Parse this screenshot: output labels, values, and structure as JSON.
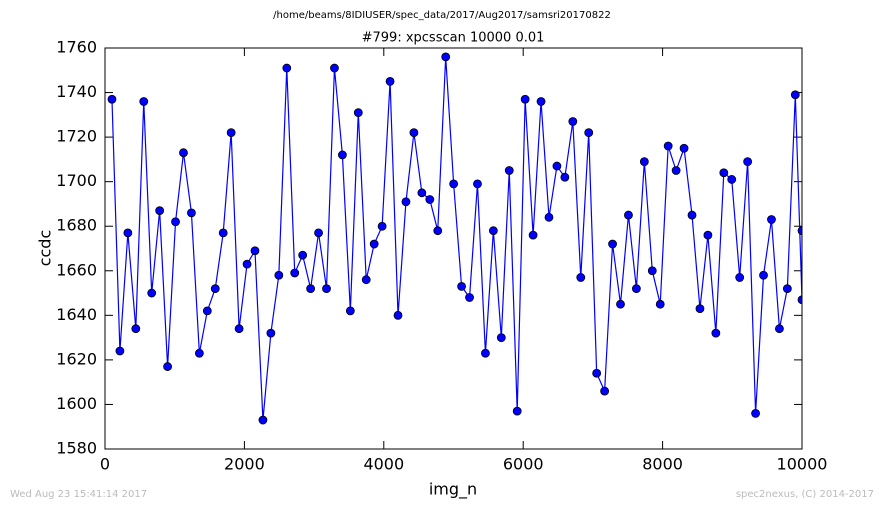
{
  "chart_data": {
    "type": "line",
    "title": "/home/beams/8IDIUSER/spec_data/2017/Aug2017/samsri20170822",
    "subtitle": "#799: xpcsscan 10000 0.01",
    "xlabel": "img_n",
    "ylabel": "ccdc",
    "footer_left": "Wed Aug 23 15:41:14 2017",
    "footer_right": "spec2nexus, (C) 2014-2017",
    "x": [
      100,
      214,
      328,
      442,
      556,
      670,
      784,
      898,
      1012,
      1126,
      1240,
      1354,
      1468,
      1582,
      1696,
      1810,
      1924,
      2038,
      2152,
      2266,
      2380,
      2494,
      2608,
      2722,
      2836,
      2950,
      3064,
      3178,
      3292,
      3406,
      3520,
      3634,
      3748,
      3862,
      3976,
      4090,
      4204,
      4318,
      4432,
      4546,
      4660,
      4774,
      4888,
      5002,
      5116,
      5230,
      5344,
      5458,
      5572,
      5686,
      5800,
      5914,
      6028,
      6142,
      6256,
      6370,
      6484,
      6598,
      6712,
      6826,
      6940,
      7054,
      7168,
      7282,
      7396,
      7510,
      7624,
      7738,
      7852,
      7966,
      8080,
      8194,
      8308,
      8422,
      8536,
      8650,
      8764,
      8878,
      8992,
      9106,
      9220,
      9334,
      9448,
      9562,
      9676,
      9790,
      9904,
      10000,
      10000
    ],
    "series": [
      {
        "color": "#0000ff",
        "values": [
          1737,
          1624,
          1677,
          1634,
          1736,
          1650,
          1687,
          1617,
          1682,
          1713,
          1686,
          1623,
          1642,
          1652,
          1677,
          1722,
          1634,
          1663,
          1669,
          1593,
          1632,
          1658,
          1751,
          1659,
          1667,
          1652,
          1677,
          1652,
          1751,
          1712,
          1642,
          1731,
          1656,
          1672,
          1680,
          1745,
          1640,
          1691,
          1722,
          1695,
          1692,
          1678,
          1756,
          1699,
          1653,
          1648,
          1699,
          1623,
          1678,
          1630,
          1705,
          1597,
          1737,
          1676,
          1736,
          1684,
          1707,
          1702,
          1727,
          1657,
          1722,
          1614,
          1606,
          1672,
          1645,
          1685,
          1652,
          1709,
          1660,
          1645,
          1716,
          1705,
          1715,
          1685,
          1643,
          1676,
          1632,
          1704,
          1701,
          1657,
          1709,
          1596,
          1658,
          1683,
          1634,
          1652,
          1739,
          1647,
          1678
        ]
      }
    ],
    "xlim": [
      0,
      10000
    ],
    "xticks": [
      0,
      2000,
      4000,
      6000,
      8000,
      10000
    ],
    "ylim": [
      1580,
      1760
    ],
    "yticks": [
      1580,
      1600,
      1620,
      1640,
      1660,
      1680,
      1700,
      1720,
      1740,
      1760
    ],
    "grid": false
  }
}
